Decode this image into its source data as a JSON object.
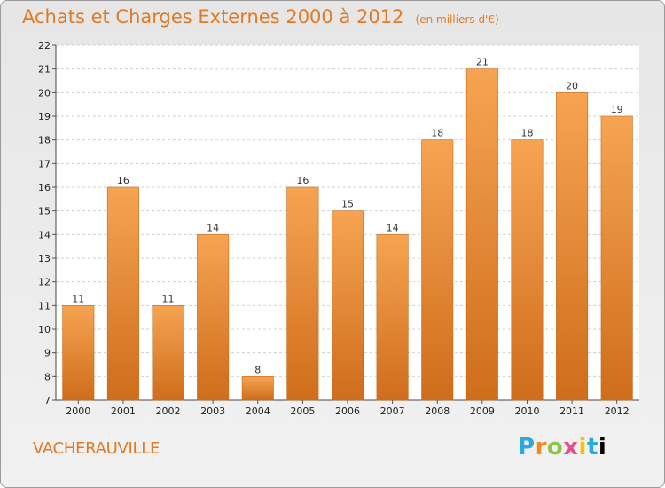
{
  "header": {
    "title": "Achats et Charges Externes 2000 à 2012",
    "subtitle": "(en milliers d'€)"
  },
  "footer": {
    "commune": "VACHERAUVILLE",
    "logo": "Proxiti"
  },
  "colors": {
    "bar_top": "#f6a452",
    "bar_bottom": "#cf6d1b",
    "title": "#e07a26",
    "grid": "#cfcfcf"
  },
  "chart_data": {
    "type": "bar",
    "title": "Achats et Charges Externes 2000 à 2012",
    "subtitle": "(en milliers d'€)",
    "categories": [
      "2000",
      "2001",
      "2002",
      "2003",
      "2004",
      "2005",
      "2006",
      "2007",
      "2008",
      "2009",
      "2010",
      "2011",
      "2012"
    ],
    "values": [
      11,
      16,
      11,
      14,
      8,
      16,
      15,
      14,
      18,
      21,
      18,
      20,
      19
    ],
    "ylim": [
      7,
      22
    ],
    "yticks": [
      7,
      8,
      9,
      10,
      11,
      12,
      13,
      14,
      15,
      16,
      17,
      18,
      19,
      20,
      21,
      22
    ],
    "grid": true,
    "xlabel": "",
    "ylabel": ""
  }
}
